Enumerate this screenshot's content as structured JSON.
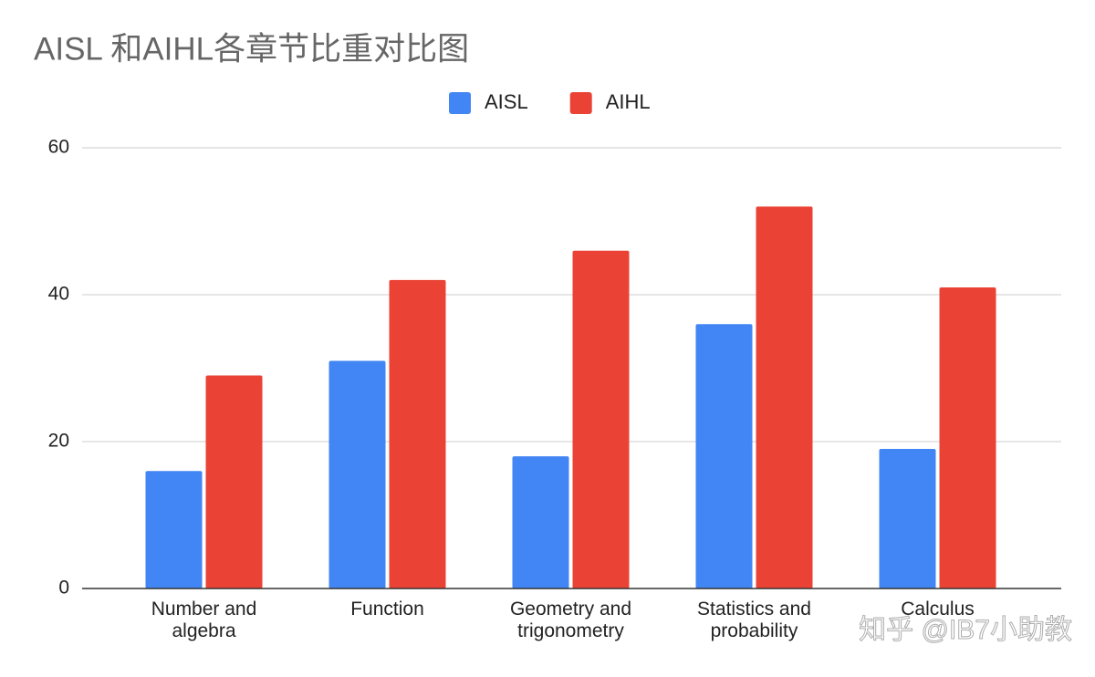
{
  "chart_data": {
    "type": "bar",
    "title": "AISL 和AIHL各章节比重对比图",
    "categories": [
      "Number and algebra",
      "Function",
      "Geometry and trigonometry",
      "Statistics and probability",
      "Calculus"
    ],
    "series": [
      {
        "name": "AISL",
        "color": "#4285f4",
        "values": [
          16,
          31,
          18,
          36,
          19
        ]
      },
      {
        "name": "AIHL",
        "color": "#ea4335",
        "values": [
          29,
          42,
          46,
          52,
          41
        ]
      }
    ],
    "ylim": [
      0,
      60
    ],
    "yticks": [
      0,
      20,
      40,
      60
    ],
    "grid": true,
    "legend": "top",
    "watermark": "知乎 @IB7小助教"
  }
}
